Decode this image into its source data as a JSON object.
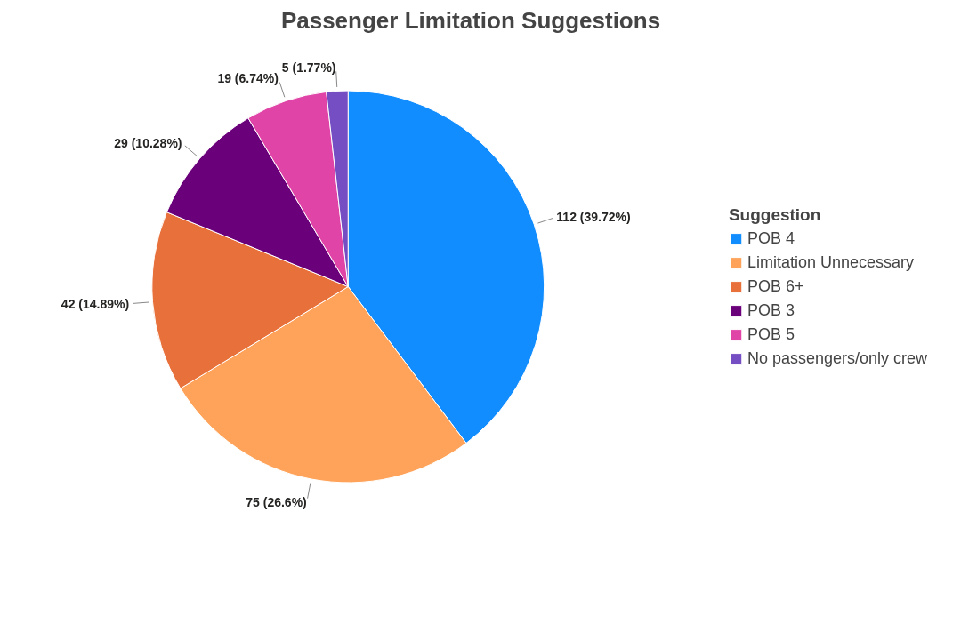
{
  "chart_data": {
    "type": "pie",
    "title": "Passenger Limitation Suggestions",
    "legend_title": "Suggestion",
    "categories": [
      "POB 4",
      "Limitation Unnecessary",
      "POB 6+",
      "POB 3",
      "POB 5",
      "No passengers/only crew"
    ],
    "values": [
      112,
      75,
      42,
      29,
      19,
      5
    ],
    "value_labels": [
      "112 (39.72%)",
      "75 (26.6%)",
      "42 (14.89%)",
      "29 (10.28%)",
      "19 (6.74%)",
      "5 (1.77%)"
    ],
    "colors": [
      "#118dff",
      "#ffa35a",
      "#e8703a",
      "#6b007b",
      "#e044a7",
      "#744ec2"
    ],
    "legend": "right"
  }
}
